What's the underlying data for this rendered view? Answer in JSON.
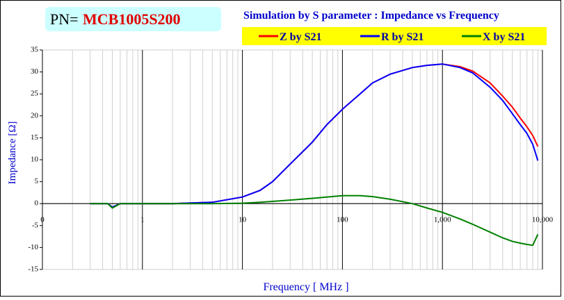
{
  "chart_data": {
    "type": "line",
    "part_number_label": "PN=",
    "part_number": "MCB1005S200",
    "title": "Simulation by S parameter : Impedance vs Frequency",
    "x_label": "Frequency [ MHz ]",
    "y_label": "Impedance [Ω]",
    "xscale": "log",
    "xlim": [
      0.1,
      10000
    ],
    "xticks": [
      {
        "value": 0.1,
        "label": "0"
      },
      1,
      10,
      100,
      {
        "value": 1000,
        "label": "1,000"
      },
      {
        "value": 10000,
        "label": "10,000"
      }
    ],
    "ylim": [
      -15,
      35
    ],
    "yticks": [
      -15,
      -10,
      -5,
      0,
      5,
      10,
      15,
      20,
      25,
      30,
      35
    ],
    "grid": true,
    "minor_grid": true,
    "x": [
      0.3,
      0.4,
      0.45,
      0.5,
      0.6,
      1,
      2,
      5,
      10,
      15,
      20,
      30,
      50,
      70,
      100,
      150,
      200,
      300,
      500,
      700,
      1000,
      1500,
      2000,
      3000,
      4000,
      5000,
      6000,
      7000,
      8000,
      9000
    ],
    "series": [
      {
        "name": "Z by S21",
        "color": "#ff0000",
        "values": [
          0,
          0,
          0,
          -0.8,
          0,
          0,
          0,
          0.3,
          1.5,
          3,
          5,
          9,
          14,
          18,
          21.5,
          25,
          27.5,
          29.5,
          31,
          31.5,
          31.8,
          31.2,
          30.2,
          27.5,
          24.5,
          22,
          19.5,
          17.5,
          15.5,
          13
        ]
      },
      {
        "name": "R by S21",
        "color": "#0000ff",
        "values": [
          0,
          0,
          0,
          -0.8,
          0,
          0,
          0,
          0.3,
          1.5,
          3,
          5,
          9,
          14,
          18,
          21.5,
          25,
          27.5,
          29.5,
          31,
          31.5,
          31.8,
          31,
          29.8,
          26.5,
          23.5,
          20.5,
          18,
          16,
          13.5,
          9.8
        ]
      },
      {
        "name": "X by S21",
        "color": "#008000",
        "values": [
          0,
          0,
          0,
          -1,
          0,
          0,
          0,
          0,
          0.1,
          0.3,
          0.5,
          0.8,
          1.2,
          1.5,
          1.8,
          1.8,
          1.6,
          1.0,
          0,
          -1,
          -2,
          -3.5,
          -4.7,
          -6.5,
          -7.8,
          -8.6,
          -9,
          -9.3,
          -9.5,
          -7
        ]
      }
    ]
  }
}
